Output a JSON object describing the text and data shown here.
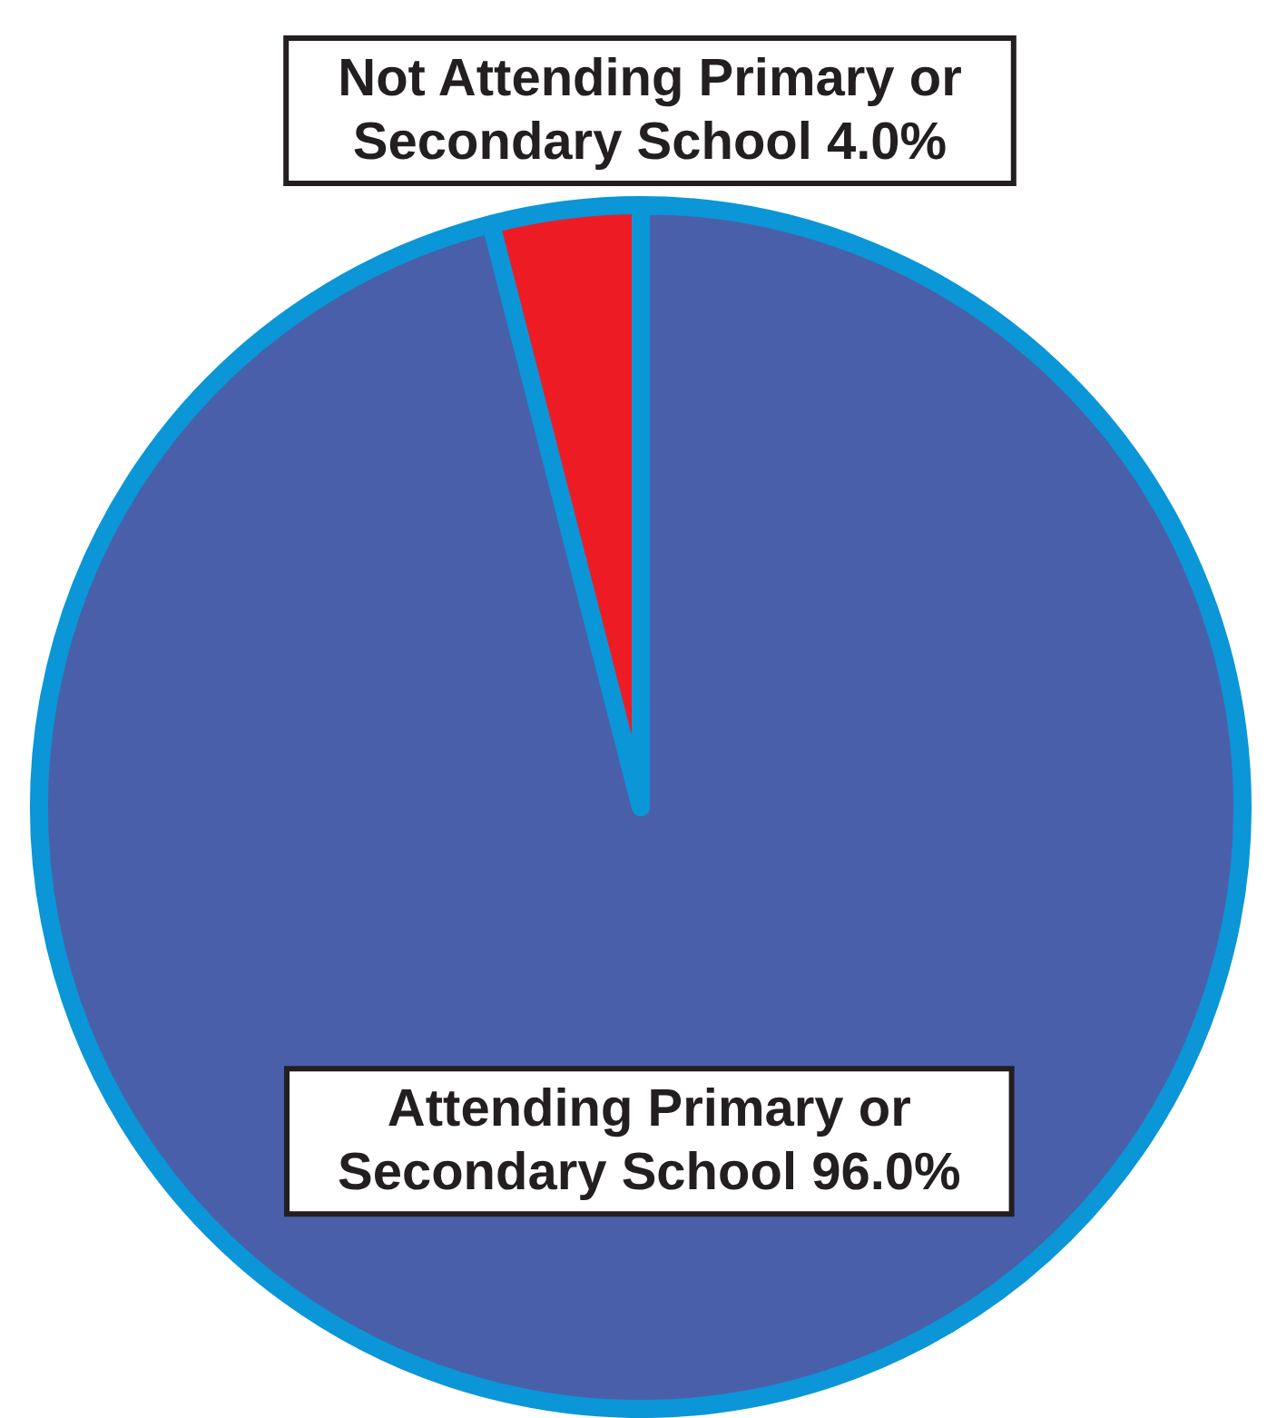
{
  "chart_data": {
    "type": "pie",
    "categories": [
      "Attending Primary or Secondary School",
      "Not Attending Primary or Secondary School"
    ],
    "values": [
      96.0,
      4.0
    ],
    "colors": [
      "#4a5fa9",
      "#ed1c24"
    ],
    "value_labels": [
      "96.0%",
      "4.0%"
    ]
  }
}
